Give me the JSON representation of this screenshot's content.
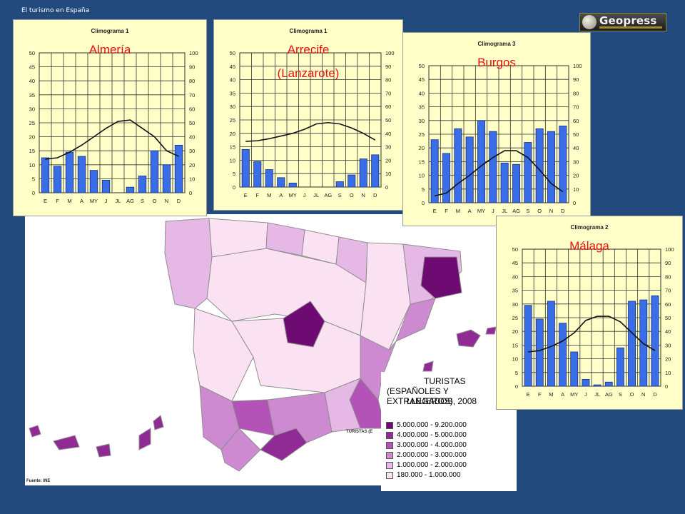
{
  "header": {
    "slide_title": "El turismo en España",
    "logo_text": "Geopress",
    "logo_icon": "globe-icon"
  },
  "map": {
    "source": "Fuente: INE",
    "small_legend_label": "TURISTAS (E",
    "small_year": "2008"
  },
  "legend": {
    "title": "TURISTAS",
    "subtitle": "(ESPAÑOLES Y EXTRANJEROS)",
    "caption": "LLEGADOS, 2008",
    "classes": [
      {
        "label": "5.000.000 - 9.200.000",
        "color": "#6e0b73"
      },
      {
        "label": "4.000.000 - 5.000.000",
        "color": "#902b96"
      },
      {
        "label": "3.000.000 - 4.000.000",
        "color": "#b353b8"
      },
      {
        "label": "2.000.000 - 3.000.000",
        "color": "#cd8ad0"
      },
      {
        "label": "1.000.000 - 2.000.000",
        "color": "#e6b8e6"
      },
      {
        "label": "180.000 - 1.000.000",
        "color": "#fbe2f3"
      }
    ]
  },
  "chart_data": [
    {
      "type": "bar",
      "title": "Climograma 1",
      "place": "Almería",
      "categories": [
        "E",
        "F",
        "M",
        "A",
        "MY",
        "J",
        "JL",
        "AG",
        "S",
        "O",
        "N",
        "D"
      ],
      "left_ticks": [
        "0",
        "5",
        "10",
        "15",
        "20",
        "25",
        "30",
        "35",
        "40",
        "45",
        "50"
      ],
      "right_ticks": [
        "0",
        "10",
        "20",
        "30",
        "40",
        "50",
        "60",
        "70",
        "80",
        "90",
        "100"
      ],
      "ylim": [
        0,
        50
      ],
      "y2lim": [
        0,
        100
      ],
      "series": [
        {
          "kind": "bar",
          "axis": "left",
          "values": [
            12.5,
            9.5,
            14.5,
            13,
            8,
            4.5,
            0,
            2,
            6,
            15,
            10,
            17
          ]
        },
        {
          "kind": "line",
          "axis": "right",
          "values": [
            24,
            25,
            29,
            34,
            40,
            46,
            51,
            52,
            46,
            40,
            30,
            26
          ]
        }
      ]
    },
    {
      "type": "bar",
      "title": "Climograma 1",
      "place": "Arrecife",
      "place_line2": "(Lanzarote)",
      "categories": [
        "E",
        "F",
        "M",
        "A",
        "MY",
        "J",
        "JL",
        "AG",
        "S",
        "O",
        "N",
        "D"
      ],
      "left_ticks": [
        "0",
        "5",
        "10",
        "15",
        "20",
        "25",
        "30",
        "35",
        "40",
        "45",
        "50"
      ],
      "right_ticks": [
        "0",
        "10",
        "20",
        "30",
        "40",
        "50",
        "60",
        "70",
        "80",
        "90",
        "100"
      ],
      "ylim": [
        0,
        50
      ],
      "y2lim": [
        0,
        100
      ],
      "series": [
        {
          "kind": "bar",
          "axis": "left",
          "values": [
            14,
            9.5,
            6.5,
            3.5,
            1.5,
            0,
            0,
            0,
            2,
            4.5,
            10.5,
            12
          ]
        },
        {
          "kind": "line",
          "axis": "right",
          "values": [
            34,
            34.5,
            36,
            38,
            40,
            43,
            47,
            48,
            47,
            44,
            40,
            35
          ]
        }
      ]
    },
    {
      "type": "bar",
      "title": "Climograma 3",
      "place": "Burgos",
      "categories": [
        "E",
        "F",
        "M",
        "A",
        "MY",
        "J",
        "JL",
        "AG",
        "S",
        "O",
        "N",
        "D"
      ],
      "left_ticks": [
        "0",
        "5",
        "10",
        "15",
        "20",
        "25",
        "30",
        "35",
        "40",
        "45",
        "50"
      ],
      "right_ticks": [
        "0",
        "10",
        "20",
        "30",
        "40",
        "50",
        "60",
        "70",
        "80",
        "90",
        "100"
      ],
      "ylim": [
        0,
        50
      ],
      "y2lim": [
        0,
        100
      ],
      "series": [
        {
          "kind": "bar",
          "axis": "left",
          "values": [
            23,
            18,
            27,
            24,
            30,
            26,
            14.5,
            14,
            22,
            27,
            26,
            28
          ]
        },
        {
          "kind": "line",
          "axis": "right",
          "values": [
            5,
            7,
            14,
            20,
            27,
            33,
            38,
            38,
            33,
            24,
            14,
            8
          ]
        }
      ]
    },
    {
      "type": "bar",
      "title": "Climograma 2",
      "place": "Málaga",
      "categories": [
        "E",
        "F",
        "M",
        "A",
        "MY",
        "J",
        "JL",
        "AG",
        "S",
        "O",
        "N",
        "D"
      ],
      "left_ticks": [
        "0",
        "5",
        "10",
        "15",
        "20",
        "25",
        "30",
        "35",
        "40",
        "45",
        "50"
      ],
      "right_ticks": [
        "0",
        "10",
        "20",
        "30",
        "40",
        "50",
        "60",
        "70",
        "80",
        "90",
        "100"
      ],
      "ylim": [
        0,
        50
      ],
      "y2lim": [
        0,
        100
      ],
      "series": [
        {
          "kind": "bar",
          "axis": "left",
          "values": [
            29.5,
            24.5,
            31,
            23,
            12.5,
            2.5,
            0.5,
            1.5,
            14,
            31,
            31.5,
            33
          ]
        },
        {
          "kind": "line",
          "axis": "right",
          "values": [
            25,
            26,
            29,
            33,
            39,
            48,
            51,
            51,
            47,
            39,
            31,
            26
          ]
        }
      ]
    }
  ]
}
